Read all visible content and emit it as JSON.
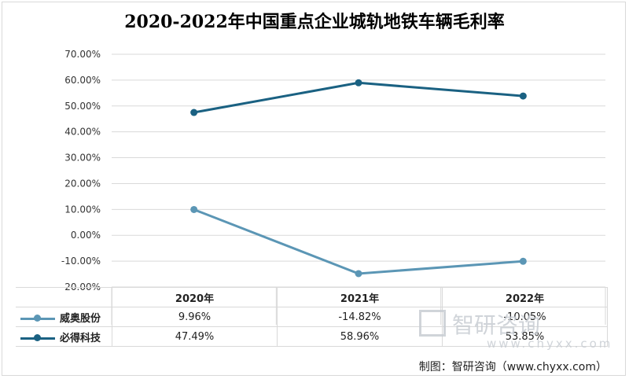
{
  "title": "2020-2022年中国重点企业城轨地铁车辆毛利率",
  "source": "制图：智研咨询（www.chyxx.com）",
  "watermark": {
    "text": "智研咨询",
    "url": "www.chyxx.com"
  },
  "chart_data": {
    "type": "line",
    "title": "2020-2022年中国重点企业城轨地铁车辆毛利率",
    "categories": [
      "2020年",
      "2021年",
      "2022年"
    ],
    "yticks": [
      "70.00%",
      "60.00%",
      "50.00%",
      "40.00%",
      "30.00%",
      "20.00%",
      "10.00%",
      "0.00%",
      "-10.00%",
      "-20.00%"
    ],
    "ylim": [
      -20,
      70
    ],
    "grid": true,
    "legend": "data-table-left",
    "series": [
      {
        "name": "威奥股份",
        "values": [
          9.96,
          -14.82,
          -10.05
        ],
        "labels": [
          "9.96%",
          "-14.82%",
          "-10.05%"
        ],
        "color": "#5b96b5"
      },
      {
        "name": "必得科技",
        "values": [
          47.49,
          58.96,
          53.85
        ],
        "labels": [
          "47.49%",
          "58.96%",
          "53.85%"
        ],
        "color": "#1a6182"
      }
    ]
  }
}
